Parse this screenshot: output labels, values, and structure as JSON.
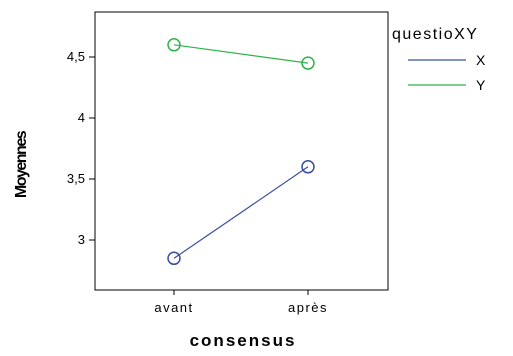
{
  "chart_data": {
    "type": "line",
    "xlabel": "consensus",
    "ylabel": "Moyennes",
    "categories": [
      "avant",
      "après"
    ],
    "yticks": [
      "3",
      "3,5",
      "4",
      "4,5"
    ],
    "ylim": [
      2.7,
      5.0
    ],
    "grid": false,
    "legend": {
      "title": "questioXY",
      "placement": "right"
    },
    "series": [
      {
        "name": "X",
        "color": "#3a4fa0",
        "values": [
          2.85,
          3.6
        ]
      },
      {
        "name": "Y",
        "color": "#2fb34a",
        "values": [
          4.6,
          4.45
        ]
      }
    ],
    "marker": "open-circle"
  }
}
